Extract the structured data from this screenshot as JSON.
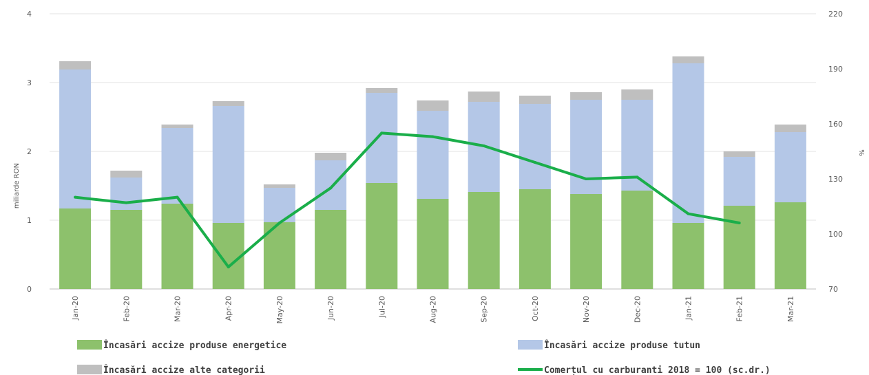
{
  "chart_data": {
    "type": "bar",
    "stacked": true,
    "categories": [
      "Jan-20",
      "Feb-20",
      "Mar-20",
      "Apr-20",
      "May-20",
      "Jun-20",
      "Jul-20",
      "Aug-20",
      "Sep-20",
      "Oct-20",
      "Nov-20",
      "Dec-20",
      "Jan-21",
      "Feb-21",
      "Mar-21"
    ],
    "ylabel": "miliarde RON",
    "y2label": "%",
    "ylim": [
      0,
      4
    ],
    "yticks": [
      0,
      1,
      2,
      3,
      4
    ],
    "y2lim": [
      70,
      220
    ],
    "y2ticks": [
      70,
      100,
      130,
      160,
      190,
      220
    ],
    "grid": true,
    "legend_position": "bottom",
    "series": [
      {
        "name": "Încasări accize produse energetice",
        "type": "bar",
        "color": "#8dc16c",
        "values": [
          1.17,
          1.15,
          1.24,
          0.96,
          0.97,
          1.15,
          1.54,
          1.31,
          1.41,
          1.45,
          1.38,
          1.43,
          0.96,
          1.21,
          1.26
        ]
      },
      {
        "name": "Încasări accize produse tutun",
        "type": "bar",
        "color": "#b4c7e7",
        "values": [
          2.02,
          0.47,
          1.1,
          1.7,
          0.5,
          0.72,
          1.31,
          1.28,
          1.31,
          1.24,
          1.37,
          1.32,
          2.32,
          0.71,
          1.02
        ]
      },
      {
        "name": "Încasări accize alte categorii",
        "type": "bar",
        "color": "#bfbfbf",
        "values": [
          0.12,
          0.1,
          0.05,
          0.07,
          0.05,
          0.11,
          0.07,
          0.15,
          0.15,
          0.12,
          0.11,
          0.15,
          0.1,
          0.08,
          0.11
        ]
      },
      {
        "name": "Comerțul cu carburanti 2018 = 100 (sc.dr.)",
        "type": "line",
        "axis": "right",
        "color": "#1aae4a",
        "values": [
          120,
          117,
          120,
          82,
          106,
          125,
          155,
          153,
          148,
          139,
          130,
          131,
          111,
          106,
          null
        ]
      }
    ]
  }
}
